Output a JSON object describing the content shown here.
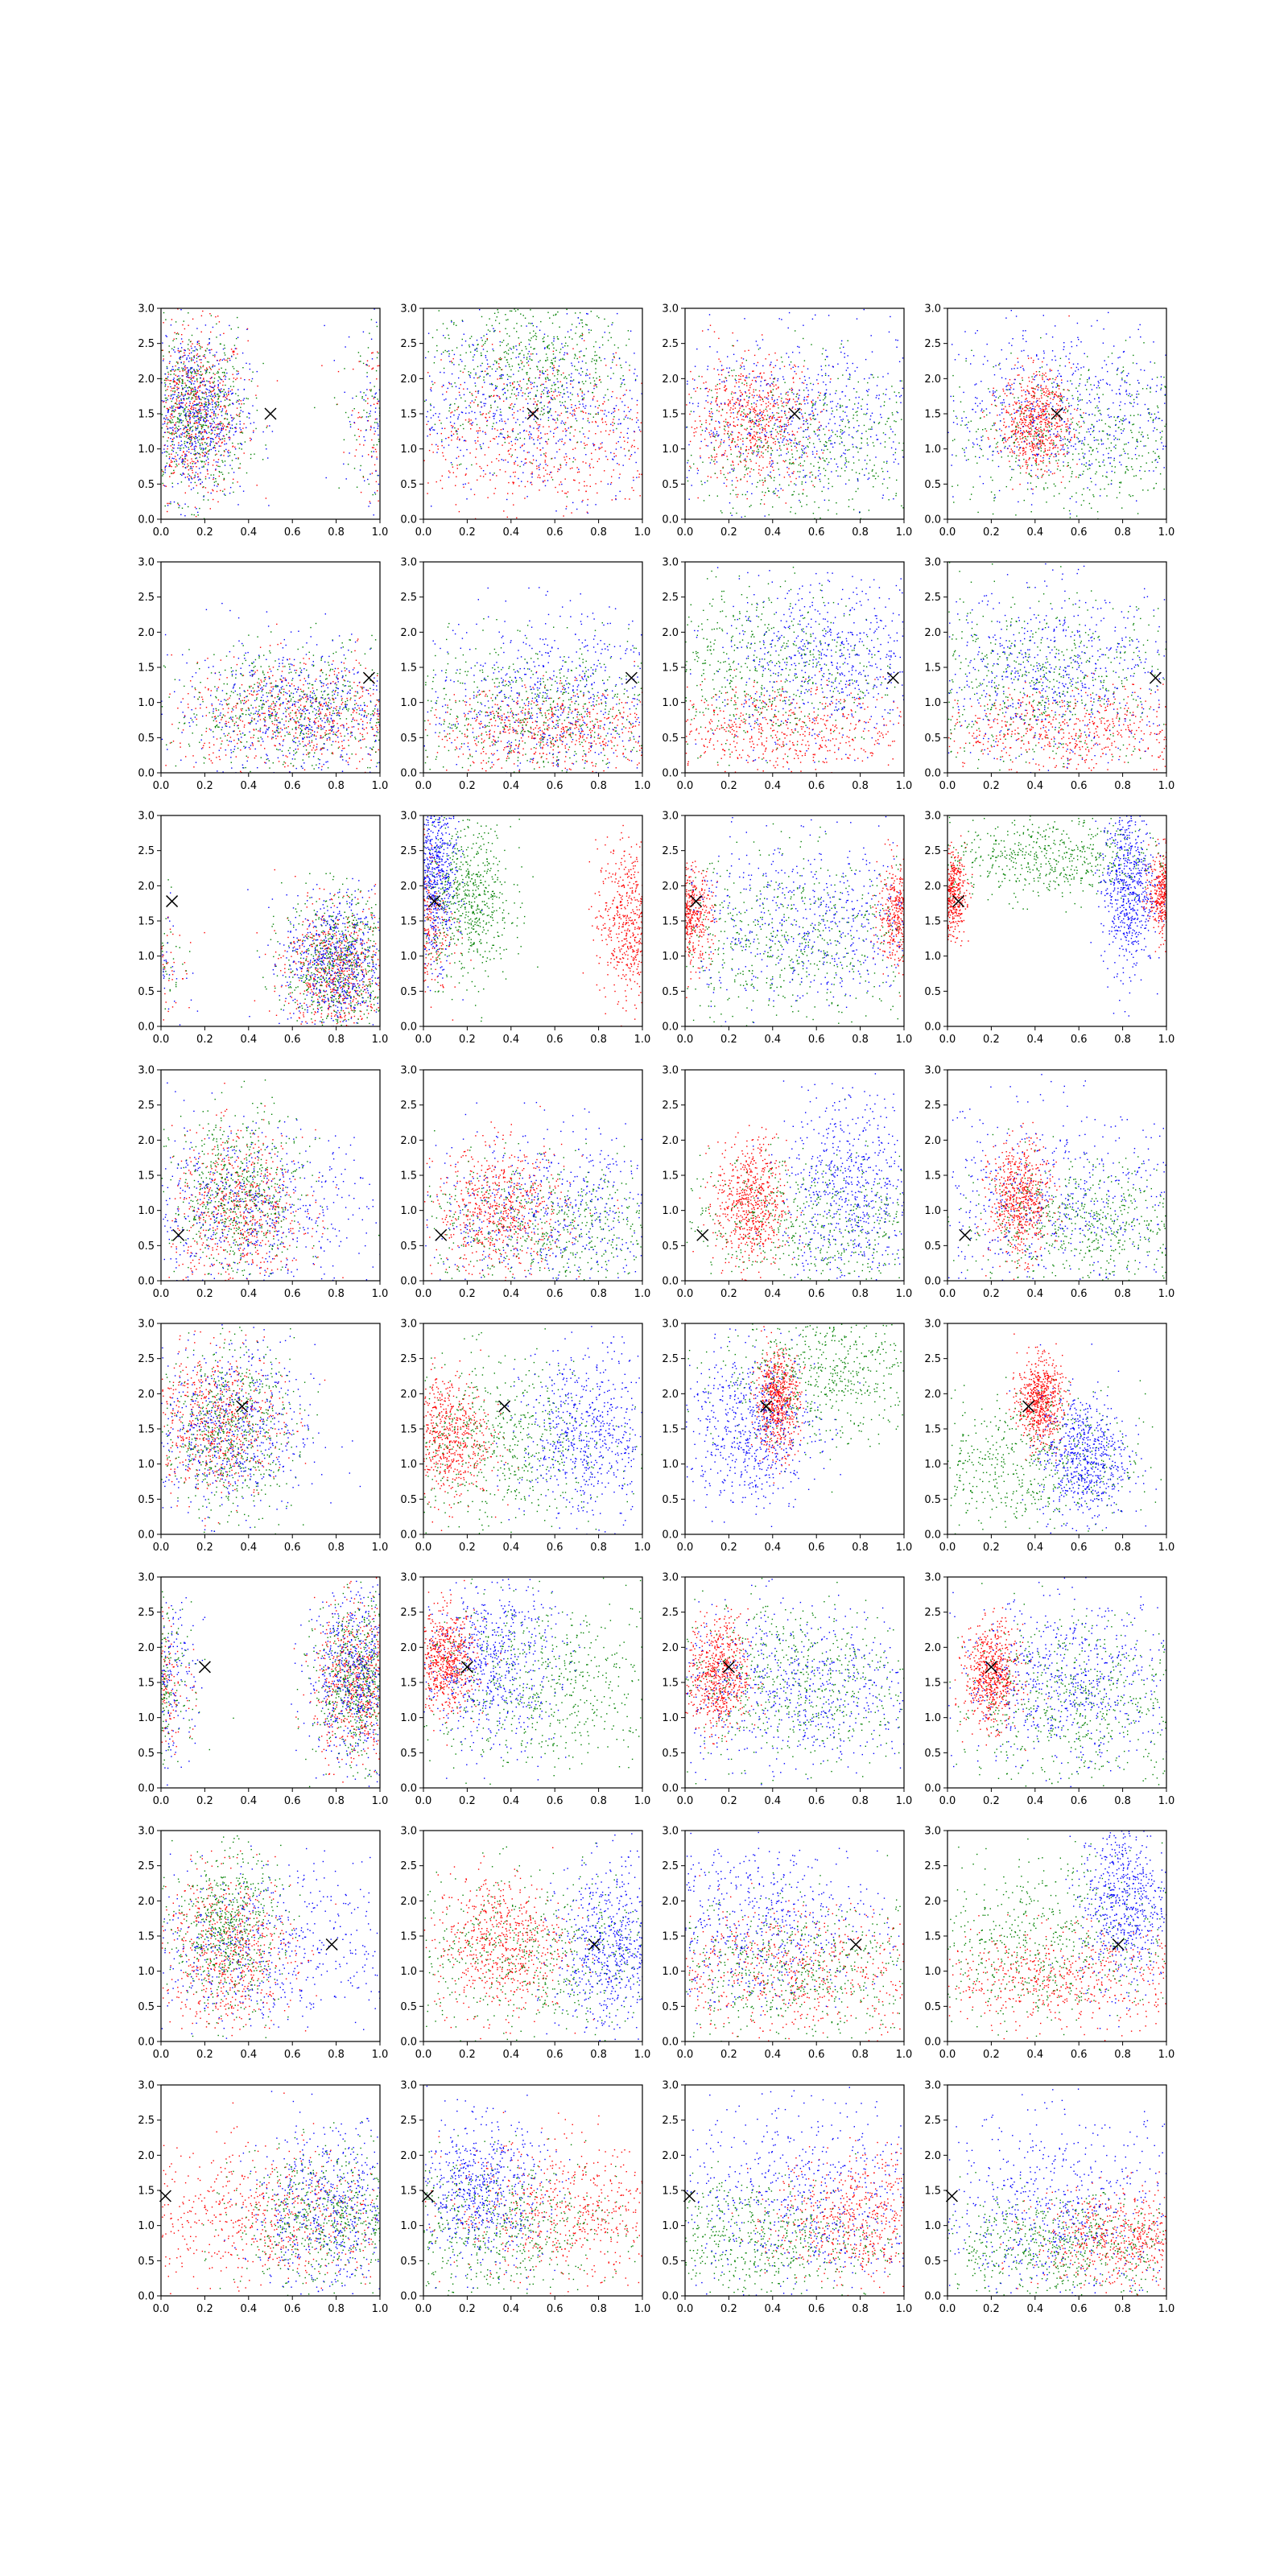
{
  "figure": {
    "rows": 8,
    "cols": 4,
    "series_colors": {
      "red": "#ff0000",
      "green": "#008000",
      "blue": "#0000ff"
    },
    "marker_color": "#000000"
  },
  "chart_data": {
    "type": "scatter",
    "description_axes": "every panel shares the same axes",
    "xlim": [
      0,
      1
    ],
    "ylim": [
      0,
      3
    ],
    "xticks": [
      "0.0",
      "0.2",
      "0.4",
      "0.6",
      "0.8",
      "1.0"
    ],
    "yticks": [
      "0.0",
      "0.5",
      "1.0",
      "1.5",
      "2.0",
      "2.5",
      "3.0"
    ],
    "title": "",
    "xlabel": "",
    "ylabel": "",
    "grid": false,
    "marker": {
      "symbol": "x",
      "color": "#000000"
    },
    "rows": [
      {
        "marker": [
          0.5,
          1.5
        ],
        "panels": [
          [
            {
              "c": "red",
              "cx": 0.15,
              "cy": 1.5,
              "sx": 0.12,
              "sy": 0.6,
              "wrap": true
            },
            {
              "c": "green",
              "cx": 0.15,
              "cy": 1.5,
              "sx": 0.12,
              "sy": 0.6,
              "wrap": true
            },
            {
              "c": "blue",
              "cx": 0.15,
              "cy": 1.5,
              "sx": 0.12,
              "sy": 0.6,
              "wrap": true
            }
          ],
          [
            {
              "c": "red",
              "cx": 0.5,
              "cy": 1.2,
              "sx": 0.35,
              "sy": 0.6
            },
            {
              "c": "green",
              "cx": 0.5,
              "cy": 2.2,
              "sx": 0.25,
              "sy": 0.6
            },
            {
              "c": "blue",
              "cx": 0.5,
              "cy": 1.6,
              "sx": 0.35,
              "sy": 0.6
            }
          ],
          [
            {
              "c": "red",
              "cx": 0.3,
              "cy": 1.4,
              "sx": 0.15,
              "sy": 0.45
            },
            {
              "c": "green",
              "cx": 0.6,
              "cy": 1.0,
              "sx": 0.35,
              "sy": 0.6
            },
            {
              "c": "blue",
              "cx": 0.5,
              "cy": 1.5,
              "sx": 0.35,
              "sy": 0.6
            }
          ],
          [
            {
              "c": "red",
              "cx": 0.4,
              "cy": 1.4,
              "sx": 0.08,
              "sy": 0.35
            },
            {
              "c": "green",
              "cx": 0.6,
              "cy": 1.1,
              "sx": 0.35,
              "sy": 0.6
            },
            {
              "c": "blue",
              "cx": 0.5,
              "cy": 1.6,
              "sx": 0.35,
              "sy": 0.6
            }
          ]
        ]
      },
      {
        "marker": [
          0.95,
          1.35
        ],
        "panels": [
          [
            {
              "c": "red",
              "cx": 0.65,
              "cy": 0.8,
              "sx": 0.3,
              "sy": 0.4
            },
            {
              "c": "green",
              "cx": 0.65,
              "cy": 0.9,
              "sx": 0.3,
              "sy": 0.45
            },
            {
              "c": "blue",
              "cx": 0.65,
              "cy": 0.9,
              "sx": 0.3,
              "sy": 0.5
            }
          ],
          [
            {
              "c": "red",
              "cx": 0.6,
              "cy": 0.6,
              "sx": 0.3,
              "sy": 0.3
            },
            {
              "c": "green",
              "cx": 0.5,
              "cy": 0.9,
              "sx": 0.35,
              "sy": 0.5
            },
            {
              "c": "blue",
              "cx": 0.6,
              "cy": 1.1,
              "sx": 0.3,
              "sy": 0.6
            }
          ],
          [
            {
              "c": "red",
              "cx": 0.4,
              "cy": 0.6,
              "sx": 0.35,
              "sy": 0.35
            },
            {
              "c": "green",
              "cx": 0.3,
              "cy": 1.5,
              "sx": 0.3,
              "sy": 0.6
            },
            {
              "c": "blue",
              "cx": 0.65,
              "cy": 1.6,
              "sx": 0.25,
              "sy": 0.6
            }
          ],
          [
            {
              "c": "red",
              "cx": 0.6,
              "cy": 0.6,
              "sx": 0.35,
              "sy": 0.3
            },
            {
              "c": "green",
              "cx": 0.4,
              "cy": 1.3,
              "sx": 0.35,
              "sy": 0.6
            },
            {
              "c": "blue",
              "cx": 0.5,
              "cy": 1.4,
              "sx": 0.3,
              "sy": 0.6
            }
          ]
        ]
      },
      {
        "marker": [
          0.05,
          1.78
        ],
        "panels": [
          [
            {
              "c": "red",
              "cx": 0.8,
              "cy": 0.8,
              "sx": 0.12,
              "sy": 0.45,
              "wrap": true
            },
            {
              "c": "green",
              "cx": 0.8,
              "cy": 0.9,
              "sx": 0.12,
              "sy": 0.5,
              "wrap": true
            },
            {
              "c": "blue",
              "cx": 0.8,
              "cy": 0.9,
              "sx": 0.12,
              "sy": 0.5,
              "wrap": true
            }
          ],
          [
            {
              "c": "red",
              "cx": 0.95,
              "cy": 1.5,
              "sx": 0.08,
              "sy": 0.55,
              "wrap": true
            },
            {
              "c": "green",
              "cx": 0.2,
              "cy": 1.8,
              "sx": 0.1,
              "sy": 0.55
            },
            {
              "c": "blue",
              "cx": 0.05,
              "cy": 2.2,
              "sx": 0.05,
              "sy": 0.6
            }
          ],
          [
            {
              "c": "red",
              "cx": 0.0,
              "cy": 1.6,
              "sx": 0.06,
              "sy": 0.35,
              "wrap": true
            },
            {
              "c": "green",
              "cx": 0.5,
              "cy": 1.2,
              "sx": 0.35,
              "sy": 0.6
            },
            {
              "c": "blue",
              "cx": 0.6,
              "cy": 1.5,
              "sx": 0.35,
              "sy": 0.6
            }
          ],
          [
            {
              "c": "red",
              "cx": 0.0,
              "cy": 1.9,
              "sx": 0.04,
              "sy": 0.3,
              "wrap": true
            },
            {
              "c": "green",
              "cx": 0.45,
              "cy": 2.4,
              "sx": 0.3,
              "sy": 0.3
            },
            {
              "c": "blue",
              "cx": 0.82,
              "cy": 2.0,
              "sx": 0.06,
              "sy": 0.6
            }
          ]
        ]
      },
      {
        "marker": [
          0.08,
          0.65
        ],
        "panels": [
          [
            {
              "c": "red",
              "cx": 0.35,
              "cy": 1.0,
              "sx": 0.15,
              "sy": 0.55
            },
            {
              "c": "green",
              "cx": 0.35,
              "cy": 1.2,
              "sx": 0.15,
              "sy": 0.6
            },
            {
              "c": "blue",
              "cx": 0.4,
              "cy": 1.0,
              "sx": 0.3,
              "sy": 0.6
            }
          ],
          [
            {
              "c": "red",
              "cx": 0.35,
              "cy": 1.0,
              "sx": 0.15,
              "sy": 0.45
            },
            {
              "c": "green",
              "cx": 0.6,
              "cy": 0.8,
              "sx": 0.35,
              "sy": 0.45
            },
            {
              "c": "blue",
              "cx": 0.6,
              "cy": 1.0,
              "sx": 0.35,
              "sy": 0.6
            }
          ],
          [
            {
              "c": "red",
              "cx": 0.3,
              "cy": 1.1,
              "sx": 0.08,
              "sy": 0.45
            },
            {
              "c": "green",
              "cx": 0.6,
              "cy": 0.8,
              "sx": 0.35,
              "sy": 0.5
            },
            {
              "c": "blue",
              "cx": 0.75,
              "cy": 1.3,
              "sx": 0.15,
              "sy": 0.7
            }
          ],
          [
            {
              "c": "red",
              "cx": 0.33,
              "cy": 1.15,
              "sx": 0.07,
              "sy": 0.4
            },
            {
              "c": "green",
              "cx": 0.65,
              "cy": 0.8,
              "sx": 0.3,
              "sy": 0.45
            },
            {
              "c": "blue",
              "cx": 0.5,
              "cy": 1.1,
              "sx": 0.4,
              "sy": 0.7
            }
          ]
        ]
      },
      {
        "marker": [
          0.37,
          1.82
        ],
        "panels": [
          [
            {
              "c": "red",
              "cx": 0.25,
              "cy": 1.6,
              "sx": 0.15,
              "sy": 0.5
            },
            {
              "c": "green",
              "cx": 0.3,
              "cy": 1.5,
              "sx": 0.15,
              "sy": 0.6
            },
            {
              "c": "blue",
              "cx": 0.3,
              "cy": 1.5,
              "sx": 0.2,
              "sy": 0.6
            }
          ],
          [
            {
              "c": "red",
              "cx": 0.1,
              "cy": 1.4,
              "sx": 0.1,
              "sy": 0.45
            },
            {
              "c": "green",
              "cx": 0.35,
              "cy": 1.3,
              "sx": 0.25,
              "sy": 0.6
            },
            {
              "c": "blue",
              "cx": 0.75,
              "cy": 1.4,
              "sx": 0.15,
              "sy": 0.6
            }
          ],
          [
            {
              "c": "red",
              "cx": 0.42,
              "cy": 1.9,
              "sx": 0.05,
              "sy": 0.35
            },
            {
              "c": "green",
              "cx": 0.65,
              "cy": 2.3,
              "sx": 0.25,
              "sy": 0.5
            },
            {
              "c": "blue",
              "cx": 0.3,
              "cy": 1.5,
              "sx": 0.15,
              "sy": 0.55
            }
          ],
          [
            {
              "c": "red",
              "cx": 0.42,
              "cy": 1.9,
              "sx": 0.05,
              "sy": 0.3
            },
            {
              "c": "green",
              "cx": 0.3,
              "cy": 1.0,
              "sx": 0.3,
              "sy": 0.5
            },
            {
              "c": "blue",
              "cx": 0.62,
              "cy": 1.1,
              "sx": 0.1,
              "sy": 0.45
            }
          ]
        ]
      },
      {
        "marker": [
          0.2,
          1.72
        ],
        "panels": [
          [
            {
              "c": "red",
              "cx": 0.9,
              "cy": 1.5,
              "sx": 0.1,
              "sy": 0.55,
              "wrap": true
            },
            {
              "c": "green",
              "cx": 0.9,
              "cy": 1.5,
              "sx": 0.1,
              "sy": 0.55,
              "wrap": true
            },
            {
              "c": "blue",
              "cx": 0.9,
              "cy": 1.6,
              "sx": 0.12,
              "sy": 0.6,
              "wrap": true
            }
          ],
          [
            {
              "c": "red",
              "cx": 0.1,
              "cy": 1.8,
              "sx": 0.07,
              "sy": 0.35
            },
            {
              "c": "green",
              "cx": 0.55,
              "cy": 1.5,
              "sx": 0.3,
              "sy": 0.6
            },
            {
              "c": "blue",
              "cx": 0.3,
              "cy": 1.8,
              "sx": 0.15,
              "sy": 0.6
            }
          ],
          [
            {
              "c": "red",
              "cx": 0.15,
              "cy": 1.6,
              "sx": 0.07,
              "sy": 0.4
            },
            {
              "c": "green",
              "cx": 0.5,
              "cy": 1.5,
              "sx": 0.3,
              "sy": 0.6
            },
            {
              "c": "blue",
              "cx": 0.5,
              "cy": 1.4,
              "sx": 0.3,
              "sy": 0.6
            }
          ],
          [
            {
              "c": "red",
              "cx": 0.2,
              "cy": 1.6,
              "sx": 0.06,
              "sy": 0.35
            },
            {
              "c": "green",
              "cx": 0.6,
              "cy": 1.2,
              "sx": 0.3,
              "sy": 0.6
            },
            {
              "c": "blue",
              "cx": 0.55,
              "cy": 1.5,
              "sx": 0.25,
              "sy": 0.6
            }
          ]
        ]
      },
      {
        "marker": [
          0.78,
          1.38
        ],
        "panels": [
          [
            {
              "c": "red",
              "cx": 0.3,
              "cy": 1.3,
              "sx": 0.15,
              "sy": 0.55
            },
            {
              "c": "green",
              "cx": 0.3,
              "cy": 1.6,
              "sx": 0.12,
              "sy": 0.55
            },
            {
              "c": "blue",
              "cx": 0.45,
              "cy": 1.3,
              "sx": 0.35,
              "sy": 0.6
            }
          ],
          [
            {
              "c": "red",
              "cx": 0.35,
              "cy": 1.4,
              "sx": 0.15,
              "sy": 0.5
            },
            {
              "c": "green",
              "cx": 0.5,
              "cy": 1.2,
              "sx": 0.35,
              "sy": 0.6
            },
            {
              "c": "blue",
              "cx": 0.85,
              "cy": 1.3,
              "sx": 0.12,
              "sy": 0.6
            }
          ],
          [
            {
              "c": "red",
              "cx": 0.5,
              "cy": 1.0,
              "sx": 0.35,
              "sy": 0.45
            },
            {
              "c": "green",
              "cx": 0.5,
              "cy": 1.0,
              "sx": 0.35,
              "sy": 0.5
            },
            {
              "c": "blue",
              "cx": 0.3,
              "cy": 1.7,
              "sx": 0.3,
              "sy": 0.6
            }
          ],
          [
            {
              "c": "red",
              "cx": 0.5,
              "cy": 0.9,
              "sx": 0.35,
              "sy": 0.35
            },
            {
              "c": "green",
              "cx": 0.4,
              "cy": 1.4,
              "sx": 0.3,
              "sy": 0.6
            },
            {
              "c": "blue",
              "cx": 0.8,
              "cy": 2.0,
              "sx": 0.1,
              "sy": 0.6
            }
          ]
        ]
      },
      {
        "marker": [
          0.02,
          1.42
        ],
        "panels": [
          [
            {
              "c": "red",
              "cx": 0.45,
              "cy": 1.1,
              "sx": 0.3,
              "sy": 0.5
            },
            {
              "c": "green",
              "cx": 0.75,
              "cy": 1.1,
              "sx": 0.2,
              "sy": 0.5
            },
            {
              "c": "blue",
              "cx": 0.8,
              "cy": 1.2,
              "sx": 0.2,
              "sy": 0.6
            }
          ],
          [
            {
              "c": "red",
              "cx": 0.7,
              "cy": 1.2,
              "sx": 0.3,
              "sy": 0.5
            },
            {
              "c": "green",
              "cx": 0.3,
              "cy": 1.0,
              "sx": 0.3,
              "sy": 0.5
            },
            {
              "c": "blue",
              "cx": 0.25,
              "cy": 1.5,
              "sx": 0.15,
              "sy": 0.5
            }
          ],
          [
            {
              "c": "red",
              "cx": 0.8,
              "cy": 1.1,
              "sx": 0.2,
              "sy": 0.45
            },
            {
              "c": "green",
              "cx": 0.3,
              "cy": 0.8,
              "sx": 0.3,
              "sy": 0.45
            },
            {
              "c": "blue",
              "cx": 0.55,
              "cy": 1.4,
              "sx": 0.3,
              "sy": 0.7
            }
          ],
          [
            {
              "c": "red",
              "cx": 0.8,
              "cy": 0.8,
              "sx": 0.2,
              "sy": 0.35
            },
            {
              "c": "green",
              "cx": 0.5,
              "cy": 0.7,
              "sx": 0.3,
              "sy": 0.35
            },
            {
              "c": "blue",
              "cx": 0.5,
              "cy": 1.2,
              "sx": 0.3,
              "sy": 0.7
            }
          ]
        ]
      }
    ]
  }
}
